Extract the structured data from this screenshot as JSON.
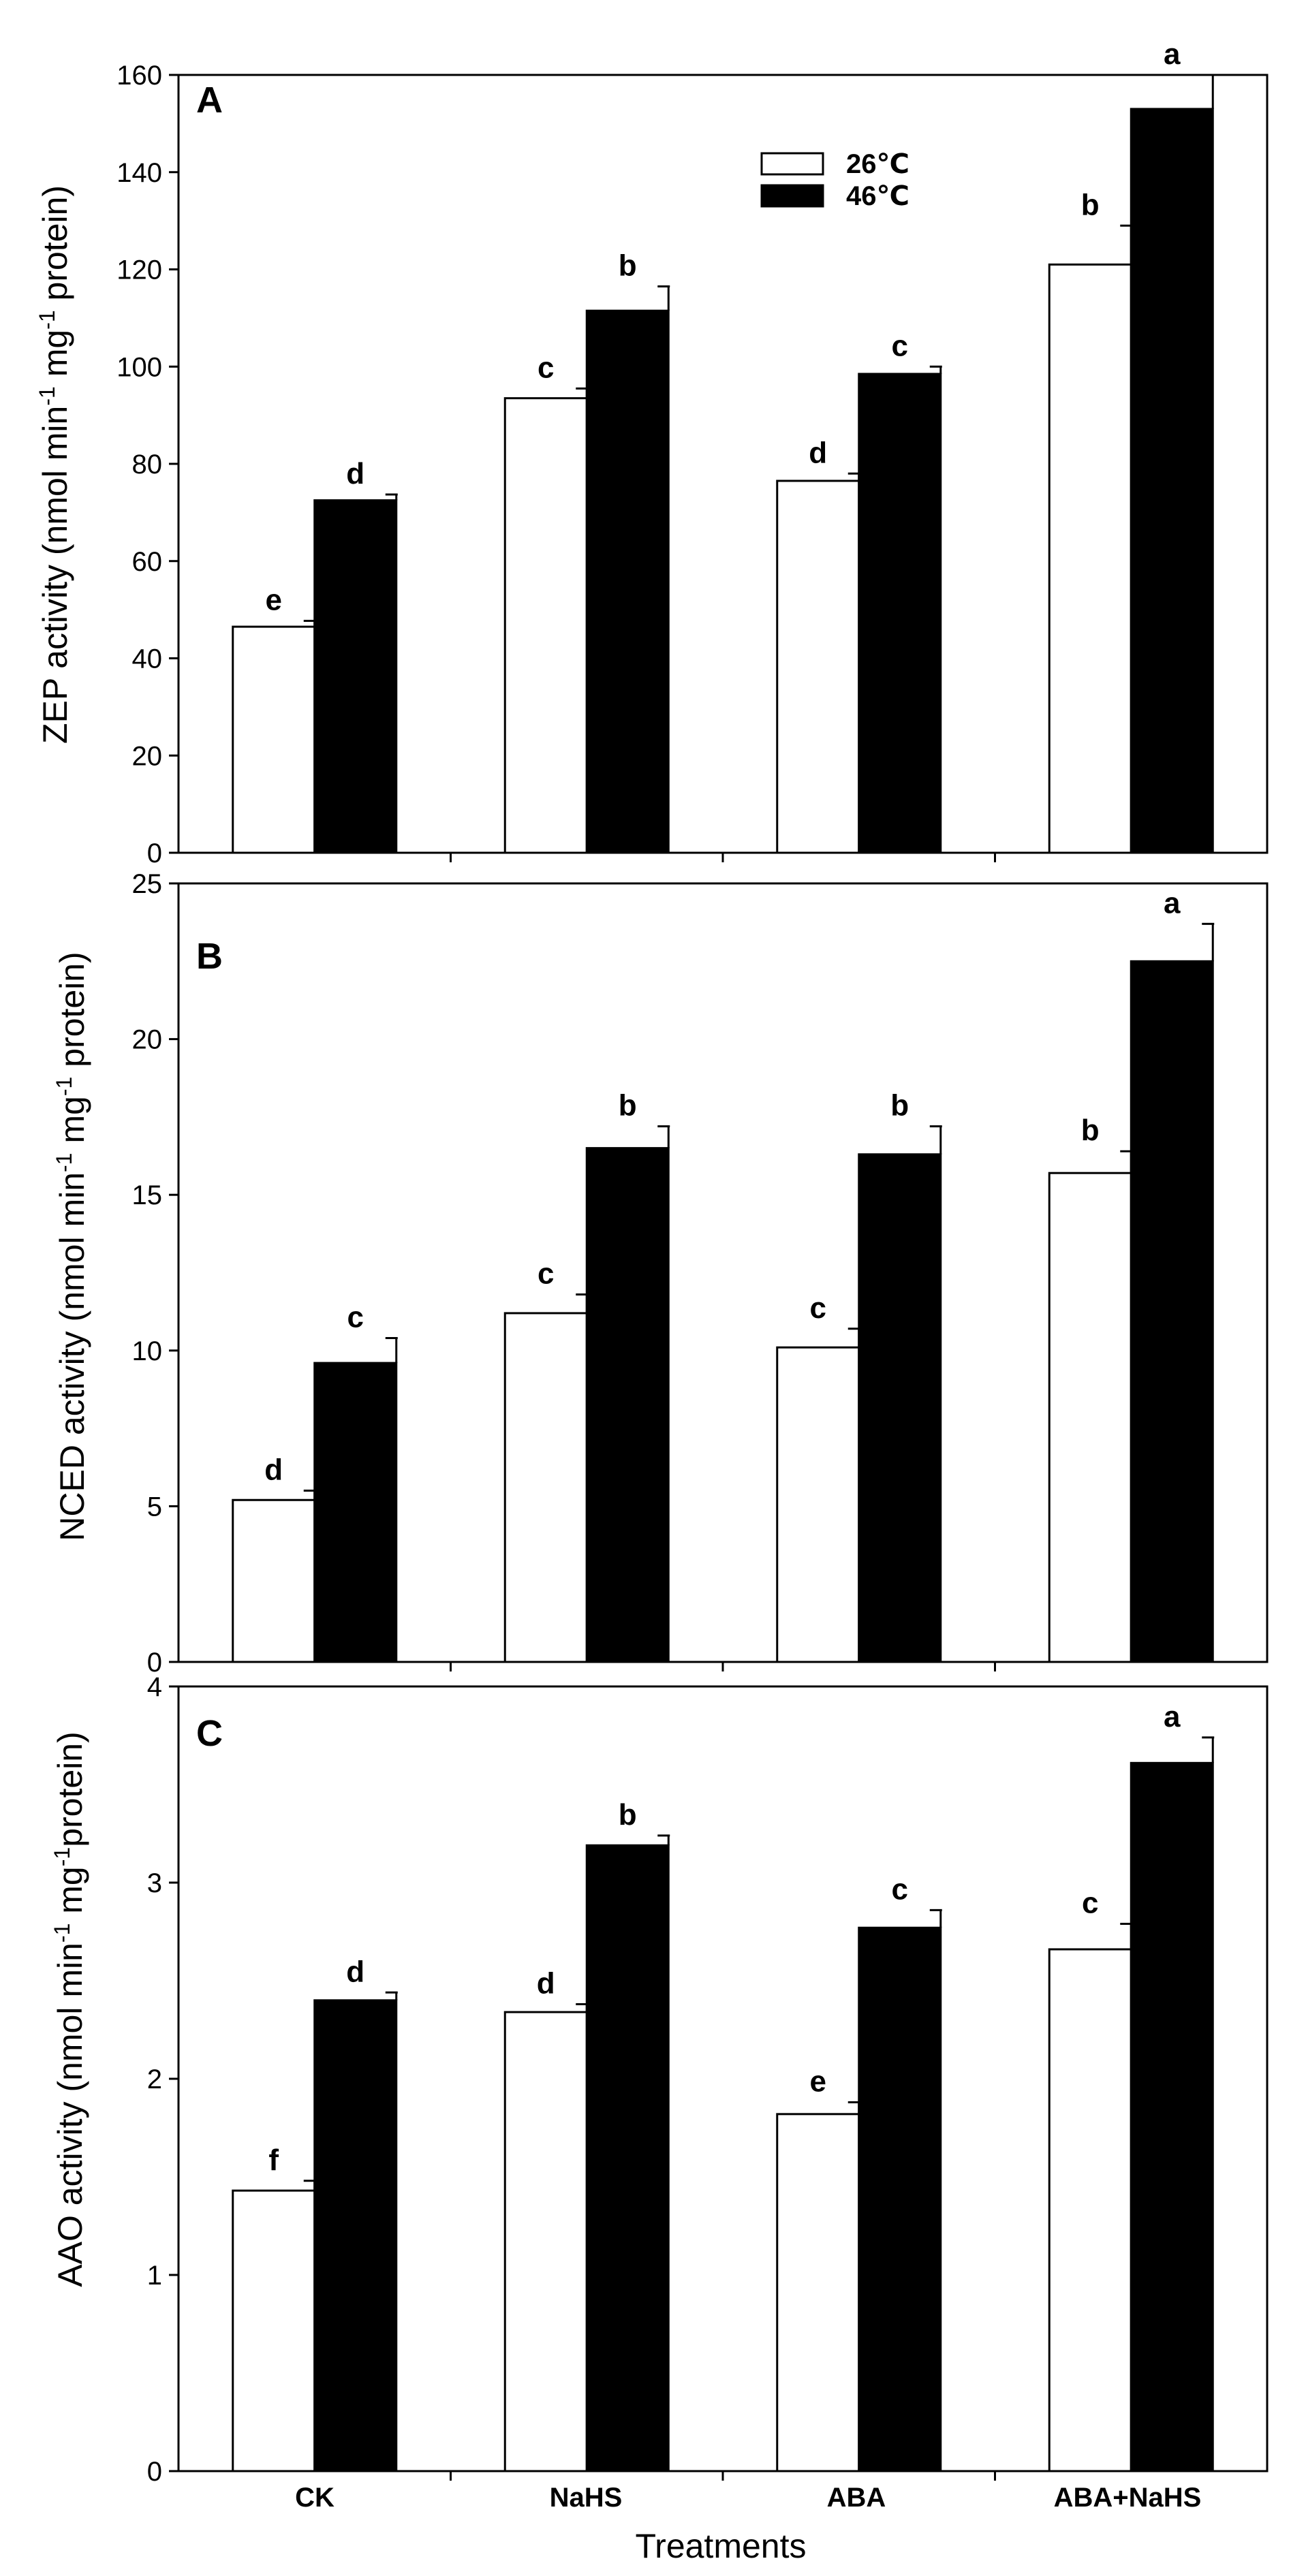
{
  "chart_data": {
    "type": "bar",
    "categories": [
      "CK",
      "NaHS",
      "ABA",
      "ABA+NaHS"
    ],
    "xlabel": "Treatments",
    "legend": {
      "position": "top-center",
      "entries": [
        {
          "name": "26℃",
          "color": "#ffffff"
        },
        {
          "name": "46℃",
          "color": "#000000"
        }
      ]
    },
    "panels": [
      {
        "letter": "A",
        "ylabel_parts": [
          "ZEP activity (nmol min",
          "-1",
          " mg",
          "-1",
          " protein)"
        ],
        "ylim": [
          0,
          160
        ],
        "yticks": [
          0,
          20,
          40,
          60,
          80,
          100,
          120,
          140,
          160
        ],
        "series": [
          {
            "name": "26℃",
            "values": [
              46.5,
              93.5,
              76.5,
              121
            ],
            "errors": [
              1.2,
              2.0,
              1.5,
              8
            ],
            "letters": [
              "e",
              "c",
              "d",
              "b"
            ]
          },
          {
            "name": "46℃",
            "values": [
              72.5,
              111.5,
              98.5,
              153
            ],
            "errors": [
              1.2,
              5.0,
              1.5,
              7
            ],
            "letters": [
              "d",
              "b",
              "c",
              "a"
            ]
          }
        ]
      },
      {
        "letter": "B",
        "ylabel_parts": [
          "NCED activity (nmol min",
          "-1",
          " mg",
          "-1",
          " protein)"
        ],
        "ylim": [
          0,
          25
        ],
        "yticks": [
          0,
          5,
          10,
          15,
          20,
          25
        ],
        "series": [
          {
            "name": "26℃",
            "values": [
              5.2,
              11.2,
              10.1,
              15.7
            ],
            "errors": [
              0.3,
              0.6,
              0.6,
              0.7
            ],
            "letters": [
              "d",
              "c",
              "c",
              "b"
            ]
          },
          {
            "name": "46℃",
            "values": [
              9.6,
              16.5,
              16.3,
              22.5
            ],
            "errors": [
              0.8,
              0.7,
              0.9,
              1.2
            ],
            "letters": [
              "c",
              "b",
              "b",
              "a"
            ]
          }
        ]
      },
      {
        "letter": "C",
        "ylabel_parts": [
          "AAO activity (nmol min",
          "-1",
          " mg",
          "-1",
          "protein)"
        ],
        "ylim": [
          0,
          4
        ],
        "yticks": [
          0,
          1,
          2,
          3,
          4
        ],
        "series": [
          {
            "name": "26℃",
            "values": [
              1.43,
              2.34,
              1.82,
              2.66
            ],
            "errors": [
              0.05,
              0.04,
              0.06,
              0.13
            ],
            "letters": [
              "f",
              "d",
              "e",
              "c"
            ]
          },
          {
            "name": "46℃",
            "values": [
              2.4,
              3.19,
              2.77,
              3.61
            ],
            "errors": [
              0.04,
              0.05,
              0.09,
              0.13
            ],
            "letters": [
              "d",
              "b",
              "c",
              "a"
            ]
          }
        ]
      }
    ]
  }
}
